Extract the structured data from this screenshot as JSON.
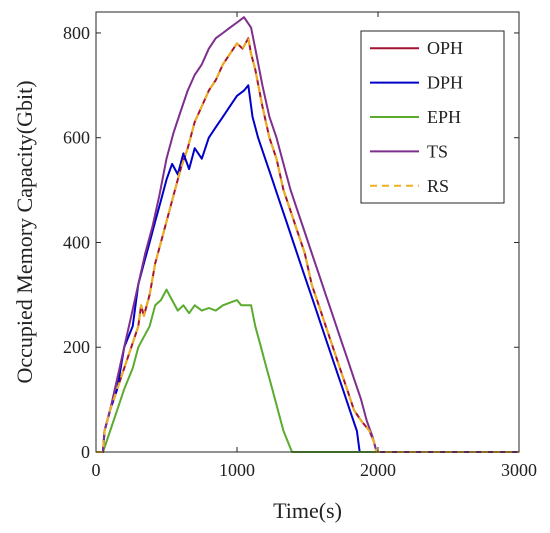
{
  "chart_data": {
    "type": "line",
    "title": "",
    "xlabel": "Time(s)",
    "ylabel": "Occupied Memory Capacity(Gbit)",
    "xlim": [
      0,
      3000
    ],
    "ylim": [
      0,
      840
    ],
    "xticks": [
      0,
      1000,
      2000,
      3000
    ],
    "yticks": [
      0,
      200,
      400,
      600,
      800
    ],
    "grid": false,
    "legend_position": "top-right",
    "series": [
      {
        "name": "OPH",
        "color": "#a2142f",
        "dash": "solid",
        "points": [
          [
            0,
            0
          ],
          [
            50,
            0
          ],
          [
            60,
            40
          ],
          [
            100,
            80
          ],
          [
            150,
            120
          ],
          [
            200,
            160
          ],
          [
            250,
            200
          ],
          [
            300,
            240
          ],
          [
            320,
            280
          ],
          [
            340,
            260
          ],
          [
            380,
            300
          ],
          [
            420,
            360
          ],
          [
            480,
            420
          ],
          [
            540,
            480
          ],
          [
            600,
            540
          ],
          [
            650,
            580
          ],
          [
            700,
            630
          ],
          [
            750,
            660
          ],
          [
            800,
            690
          ],
          [
            850,
            710
          ],
          [
            900,
            740
          ],
          [
            950,
            760
          ],
          [
            1000,
            780
          ],
          [
            1040,
            770
          ],
          [
            1080,
            790
          ],
          [
            1100,
            760
          ],
          [
            1130,
            730
          ],
          [
            1180,
            660
          ],
          [
            1230,
            600
          ],
          [
            1280,
            560
          ],
          [
            1330,
            500
          ],
          [
            1380,
            460
          ],
          [
            1430,
            420
          ],
          [
            1480,
            380
          ],
          [
            1530,
            320
          ],
          [
            1580,
            280
          ],
          [
            1630,
            240
          ],
          [
            1680,
            200
          ],
          [
            1730,
            160
          ],
          [
            1780,
            120
          ],
          [
            1830,
            80
          ],
          [
            1880,
            60
          ],
          [
            1940,
            40
          ],
          [
            1970,
            20
          ],
          [
            1990,
            0
          ],
          [
            3000,
            0
          ]
        ]
      },
      {
        "name": "DPH",
        "color": "#0000c8",
        "dash": "solid",
        "points": [
          [
            0,
            0
          ],
          [
            50,
            0
          ],
          [
            60,
            40
          ],
          [
            100,
            80
          ],
          [
            150,
            120
          ],
          [
            200,
            200
          ],
          [
            260,
            240
          ],
          [
            300,
            320
          ],
          [
            340,
            360
          ],
          [
            380,
            400
          ],
          [
            420,
            440
          ],
          [
            460,
            480
          ],
          [
            500,
            520
          ],
          [
            540,
            550
          ],
          [
            580,
            530
          ],
          [
            620,
            570
          ],
          [
            660,
            540
          ],
          [
            700,
            580
          ],
          [
            750,
            560
          ],
          [
            800,
            600
          ],
          [
            850,
            620
          ],
          [
            900,
            640
          ],
          [
            950,
            660
          ],
          [
            1000,
            680
          ],
          [
            1050,
            690
          ],
          [
            1080,
            700
          ],
          [
            1110,
            640
          ],
          [
            1150,
            600
          ],
          [
            1200,
            560
          ],
          [
            1250,
            520
          ],
          [
            1300,
            480
          ],
          [
            1350,
            440
          ],
          [
            1400,
            400
          ],
          [
            1450,
            360
          ],
          [
            1500,
            320
          ],
          [
            1550,
            280
          ],
          [
            1600,
            240
          ],
          [
            1650,
            200
          ],
          [
            1700,
            160
          ],
          [
            1750,
            120
          ],
          [
            1800,
            80
          ],
          [
            1850,
            40
          ],
          [
            1870,
            0
          ],
          [
            3000,
            0
          ]
        ]
      },
      {
        "name": "EPH",
        "color": "#5aab2e",
        "dash": "solid",
        "points": [
          [
            0,
            0
          ],
          [
            50,
            0
          ],
          [
            100,
            40
          ],
          [
            150,
            80
          ],
          [
            200,
            120
          ],
          [
            260,
            160
          ],
          [
            300,
            200
          ],
          [
            340,
            220
          ],
          [
            380,
            240
          ],
          [
            420,
            280
          ],
          [
            460,
            290
          ],
          [
            500,
            310
          ],
          [
            540,
            290
          ],
          [
            580,
            270
          ],
          [
            620,
            280
          ],
          [
            660,
            265
          ],
          [
            700,
            280
          ],
          [
            750,
            270
          ],
          [
            800,
            275
          ],
          [
            850,
            270
          ],
          [
            900,
            280
          ],
          [
            950,
            285
          ],
          [
            1000,
            290
          ],
          [
            1030,
            280
          ],
          [
            1100,
            280
          ],
          [
            1130,
            240
          ],
          [
            1170,
            200
          ],
          [
            1210,
            160
          ],
          [
            1250,
            120
          ],
          [
            1290,
            80
          ],
          [
            1330,
            40
          ],
          [
            1390,
            0
          ],
          [
            3000,
            0
          ]
        ]
      },
      {
        "name": "TS",
        "color": "#7e2f8e",
        "dash": "solid",
        "points": [
          [
            0,
            0
          ],
          [
            50,
            0
          ],
          [
            60,
            40
          ],
          [
            100,
            80
          ],
          [
            150,
            140
          ],
          [
            200,
            200
          ],
          [
            250,
            260
          ],
          [
            300,
            320
          ],
          [
            350,
            380
          ],
          [
            400,
            430
          ],
          [
            450,
            490
          ],
          [
            500,
            560
          ],
          [
            550,
            610
          ],
          [
            600,
            650
          ],
          [
            650,
            690
          ],
          [
            700,
            720
          ],
          [
            750,
            740
          ],
          [
            800,
            770
          ],
          [
            850,
            790
          ],
          [
            900,
            800
          ],
          [
            950,
            810
          ],
          [
            1000,
            820
          ],
          [
            1050,
            830
          ],
          [
            1100,
            810
          ],
          [
            1130,
            770
          ],
          [
            1180,
            700
          ],
          [
            1230,
            640
          ],
          [
            1280,
            600
          ],
          [
            1330,
            550
          ],
          [
            1380,
            500
          ],
          [
            1430,
            460
          ],
          [
            1480,
            420
          ],
          [
            1530,
            380
          ],
          [
            1580,
            340
          ],
          [
            1630,
            300
          ],
          [
            1680,
            260
          ],
          [
            1730,
            220
          ],
          [
            1780,
            180
          ],
          [
            1830,
            140
          ],
          [
            1880,
            100
          ],
          [
            1920,
            60
          ],
          [
            1960,
            30
          ],
          [
            1990,
            0
          ],
          [
            3000,
            0
          ]
        ]
      },
      {
        "name": "RS",
        "color": "#edb120",
        "dash": "dashed",
        "points": [
          [
            0,
            0
          ],
          [
            50,
            0
          ],
          [
            60,
            40
          ],
          [
            100,
            80
          ],
          [
            150,
            120
          ],
          [
            200,
            160
          ],
          [
            250,
            200
          ],
          [
            300,
            240
          ],
          [
            320,
            280
          ],
          [
            340,
            260
          ],
          [
            380,
            300
          ],
          [
            420,
            360
          ],
          [
            480,
            420
          ],
          [
            540,
            480
          ],
          [
            600,
            540
          ],
          [
            650,
            580
          ],
          [
            700,
            630
          ],
          [
            750,
            660
          ],
          [
            800,
            690
          ],
          [
            850,
            710
          ],
          [
            900,
            740
          ],
          [
            950,
            760
          ],
          [
            1000,
            780
          ],
          [
            1040,
            770
          ],
          [
            1080,
            790
          ],
          [
            1100,
            760
          ],
          [
            1130,
            730
          ],
          [
            1180,
            660
          ],
          [
            1230,
            600
          ],
          [
            1280,
            560
          ],
          [
            1330,
            500
          ],
          [
            1380,
            460
          ],
          [
            1430,
            420
          ],
          [
            1480,
            380
          ],
          [
            1530,
            320
          ],
          [
            1580,
            280
          ],
          [
            1630,
            240
          ],
          [
            1680,
            200
          ],
          [
            1730,
            160
          ],
          [
            1780,
            120
          ],
          [
            1830,
            80
          ],
          [
            1880,
            60
          ],
          [
            1940,
            40
          ],
          [
            1970,
            20
          ],
          [
            1990,
            0
          ],
          [
            3000,
            0
          ]
        ]
      }
    ]
  }
}
